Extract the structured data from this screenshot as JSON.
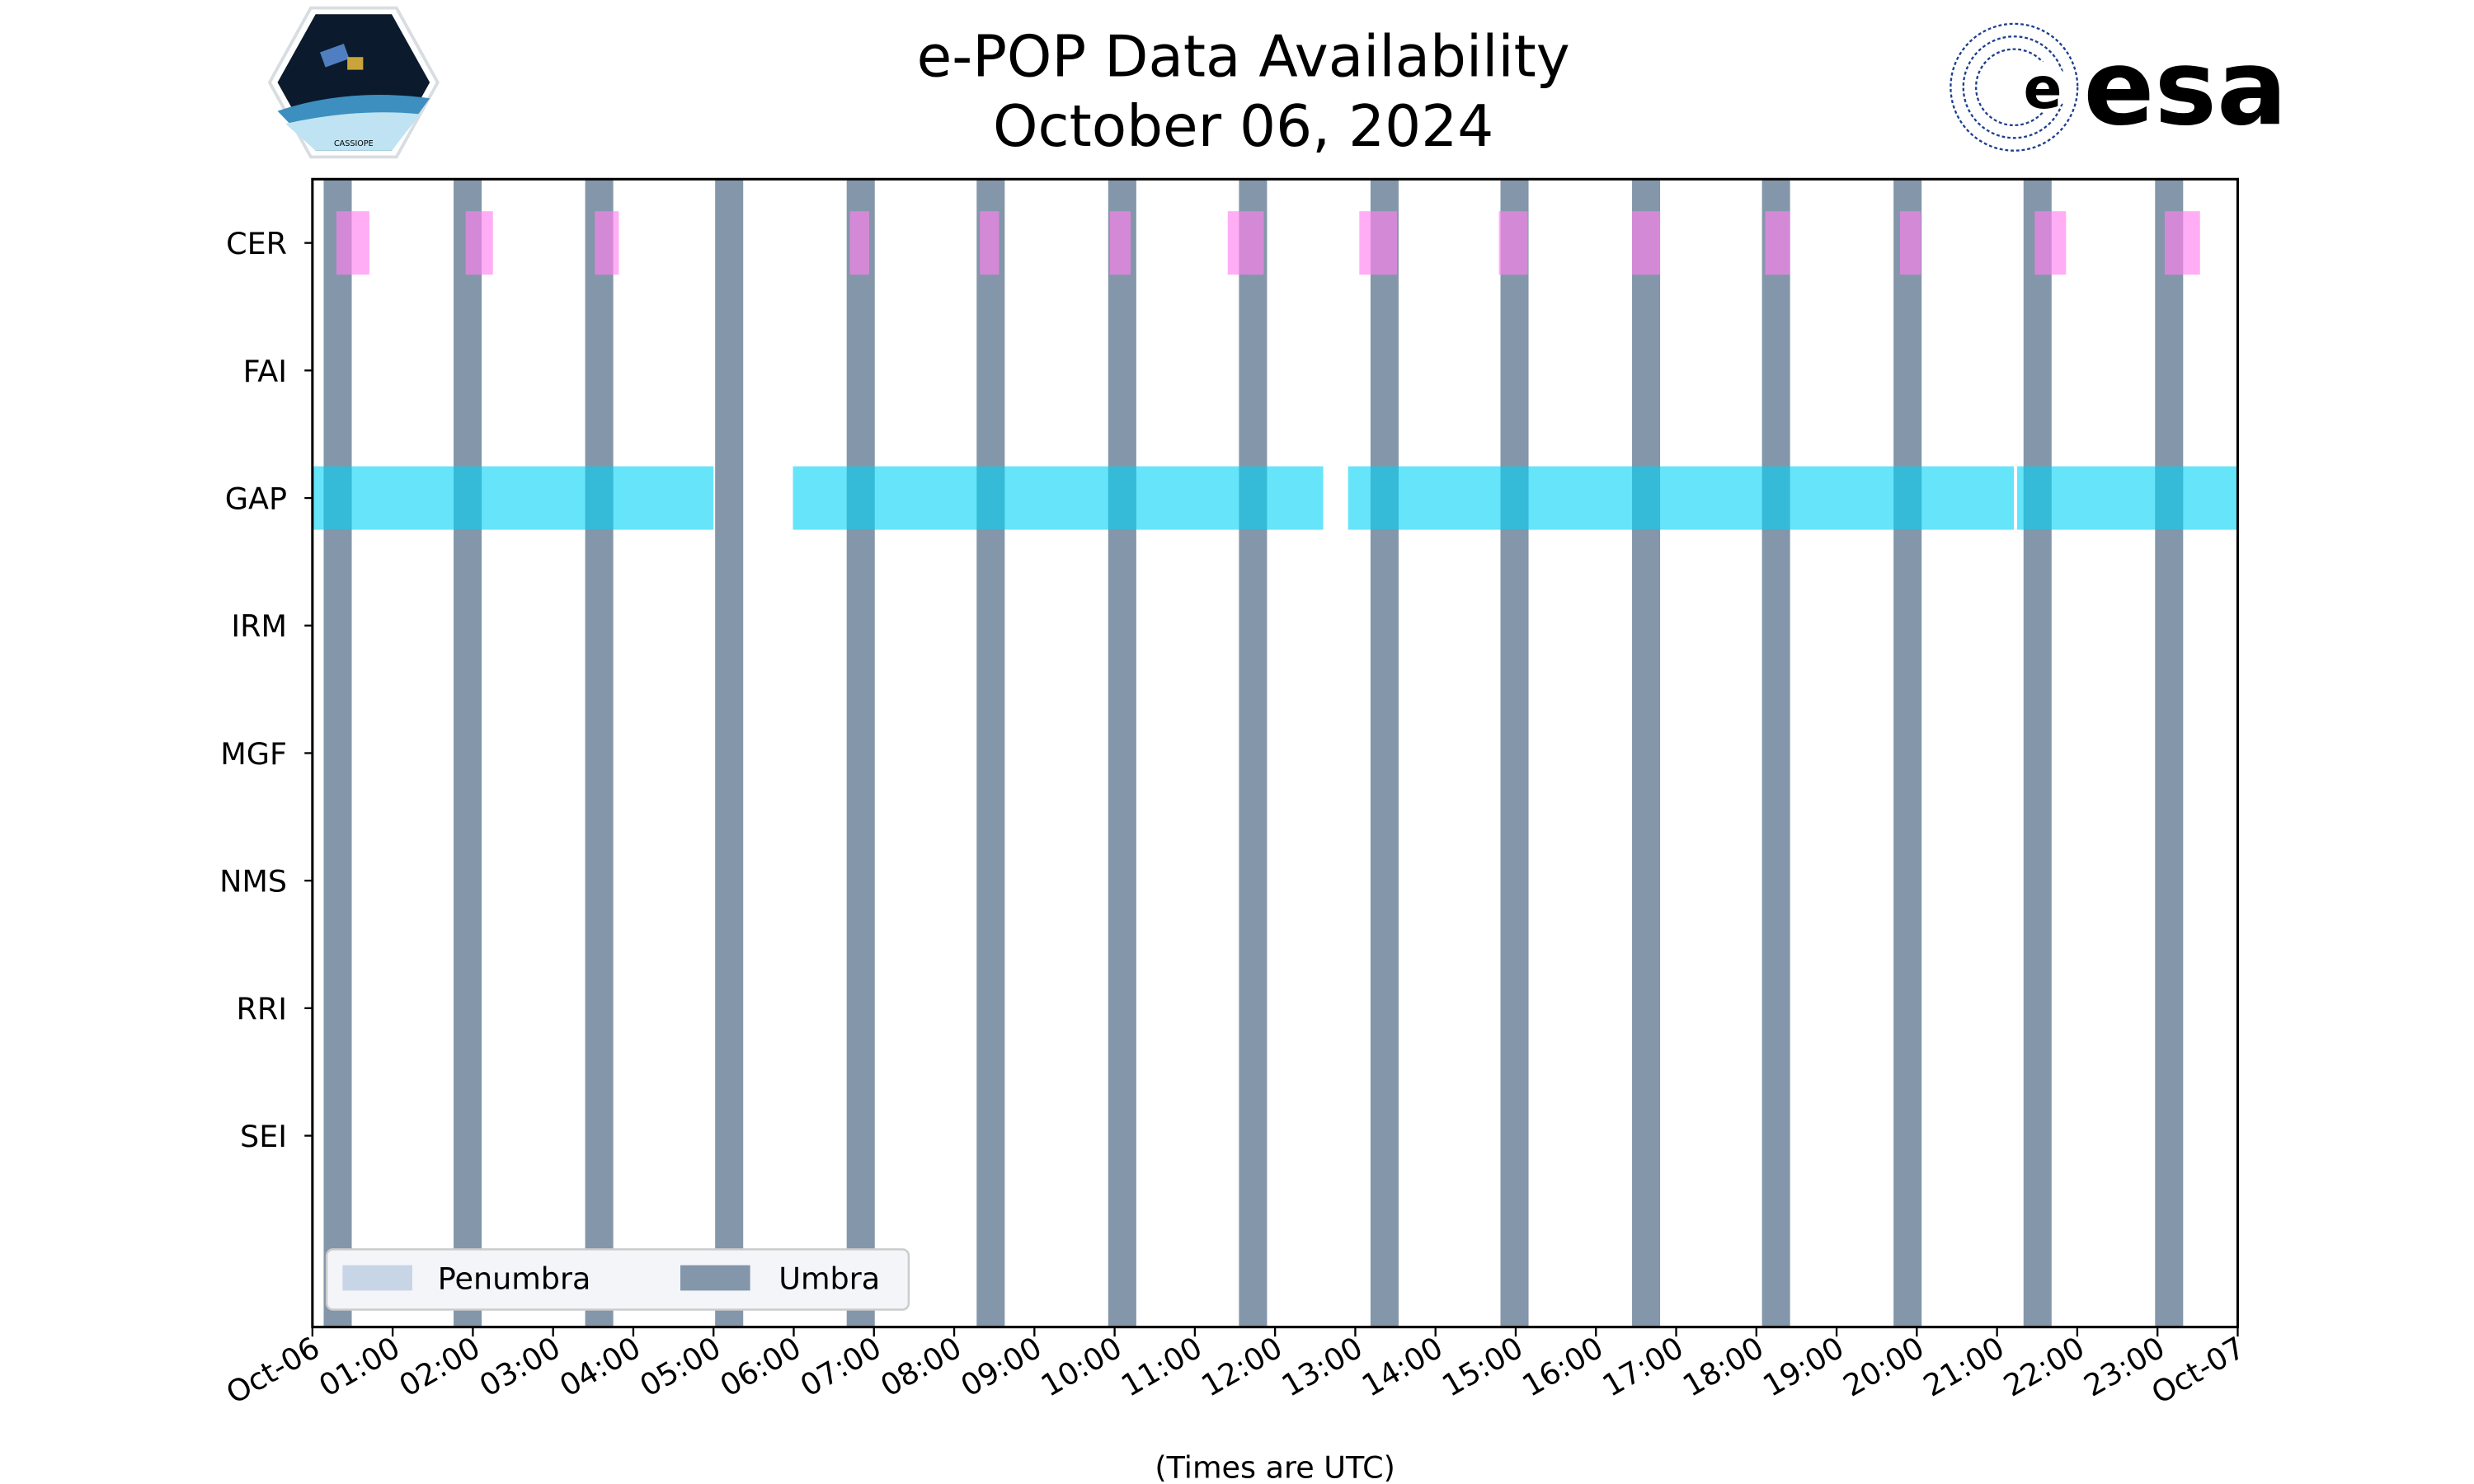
{
  "chart_data": {
    "type": "timeline",
    "title": "e-POP Data Availability",
    "subtitle": "October 06, 2024",
    "xlabel": "(Times are UTC)",
    "xlim_hours": [
      0,
      24
    ],
    "x_tick_labels": [
      "Oct-06",
      "01:00",
      "02:00",
      "03:00",
      "04:00",
      "05:00",
      "06:00",
      "07:00",
      "08:00",
      "09:00",
      "10:00",
      "11:00",
      "12:00",
      "13:00",
      "14:00",
      "15:00",
      "16:00",
      "17:00",
      "18:00",
      "19:00",
      "20:00",
      "21:00",
      "22:00",
      "23:00",
      "Oct-07"
    ],
    "instruments": [
      "CER",
      "FAI",
      "GAP",
      "IRM",
      "MGF",
      "NMS",
      "RRI",
      "SEI"
    ],
    "legend": {
      "placement": "lower-left",
      "entries": [
        {
          "label": "Penumbra",
          "color": "#c8d5e6"
        },
        {
          "label": "Umbra",
          "color": "#8496a9"
        }
      ]
    },
    "umbra_intervals_hours": [
      [
        0.14,
        0.49
      ],
      [
        1.76,
        2.11
      ],
      [
        3.4,
        3.75
      ],
      [
        5.02,
        5.37
      ],
      [
        6.66,
        7.01
      ],
      [
        8.28,
        8.63
      ],
      [
        9.92,
        10.27
      ],
      [
        11.55,
        11.9
      ],
      [
        13.19,
        13.54
      ],
      [
        14.81,
        15.16
      ],
      [
        16.45,
        16.8
      ],
      [
        18.07,
        18.42
      ],
      [
        19.71,
        20.06
      ],
      [
        21.33,
        21.68
      ],
      [
        22.97,
        23.32
      ]
    ],
    "penumbra_intervals_hours": [],
    "availability": {
      "CER": [
        [
          0.3,
          0.71
        ],
        [
          1.91,
          2.25
        ],
        [
          3.52,
          3.82
        ],
        [
          6.7,
          6.94
        ],
        [
          8.32,
          8.56
        ],
        [
          9.94,
          10.2
        ],
        [
          11.41,
          11.86
        ],
        [
          13.05,
          13.52
        ],
        [
          14.79,
          15.15
        ],
        [
          16.45,
          16.8
        ],
        [
          18.11,
          18.42
        ],
        [
          19.79,
          20.05
        ],
        [
          21.47,
          21.86
        ],
        [
          23.09,
          23.53
        ]
      ],
      "FAI": [],
      "GAP": [
        [
          0,
          5.0
        ],
        [
          5.99,
          12.6
        ],
        [
          12.91,
          21.21
        ],
        [
          21.25,
          24
        ]
      ],
      "IRM": [],
      "MGF": [],
      "NMS": [],
      "RRI": [],
      "SEI": []
    },
    "colors": {
      "CER": "#ff82f0",
      "GAP": "#00d2f7",
      "umbra": "#8496a9",
      "penumbra": "#c8d5e6"
    }
  },
  "logos": {
    "left_text": "CASSIOPE",
    "right_text": "esa"
  }
}
